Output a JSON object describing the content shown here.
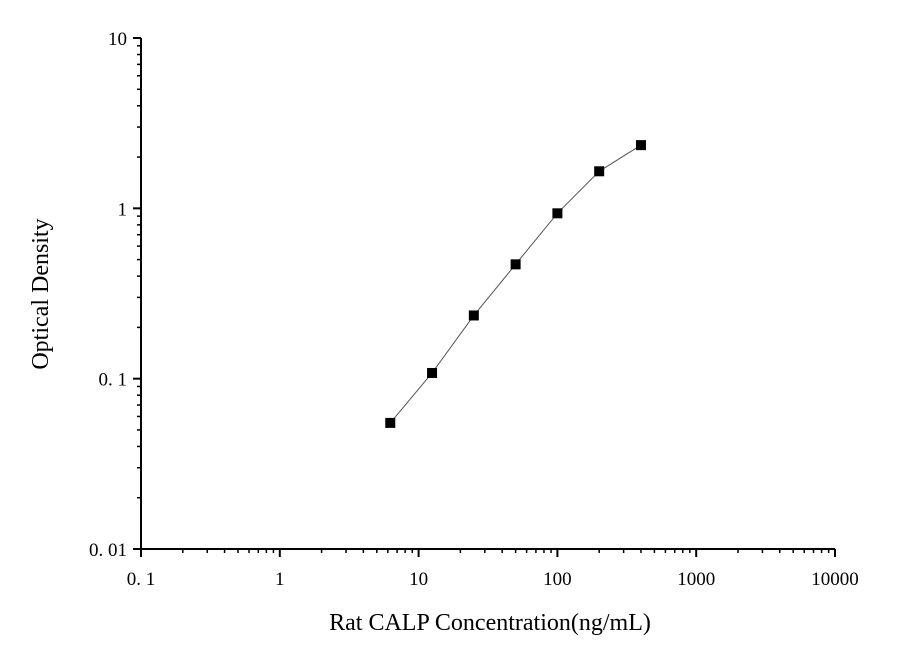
{
  "chart_data": {
    "type": "line",
    "title": "",
    "xlabel": "Rat CALP Concentration(ng/mL)",
    "ylabel": "Optical Density",
    "xscale": "log",
    "yscale": "log",
    "xlim": [
      0.1,
      10000
    ],
    "ylim": [
      0.01,
      10
    ],
    "x_ticks": [
      0.1,
      1,
      10,
      100,
      1000,
      10000
    ],
    "x_tick_labels": [
      "0. 1",
      "1",
      "10",
      "100",
      "1000",
      "10000"
    ],
    "y_ticks": [
      0.01,
      0.1,
      1,
      10
    ],
    "y_tick_labels": [
      "0. 01",
      "0. 1",
      "1",
      "10"
    ],
    "grid": false,
    "marker": "square",
    "colors": {
      "marker": "#000000",
      "line": "#555555"
    },
    "series": [
      {
        "x": [
          6.25,
          12.5,
          25,
          50,
          100,
          200,
          400
        ],
        "y": [
          0.055,
          0.108,
          0.235,
          0.469,
          0.935,
          1.65,
          2.35
        ]
      }
    ]
  }
}
